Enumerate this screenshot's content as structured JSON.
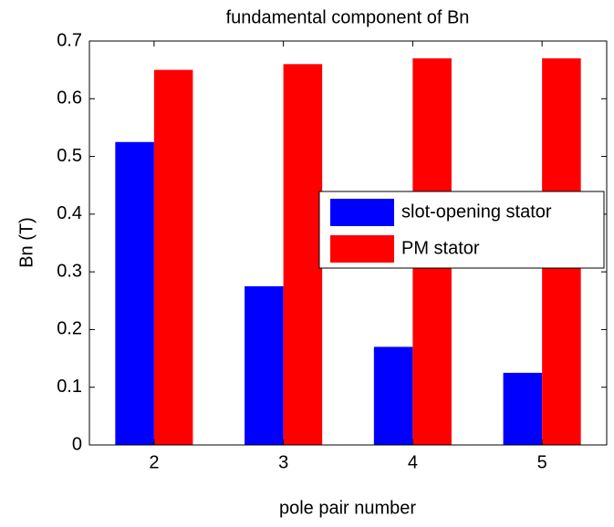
{
  "chart_data": {
    "type": "bar",
    "title": "fundamental component of Bn",
    "x_label": "pole pair number",
    "y_label": "Bn (T)",
    "categories": [
      "2",
      "3",
      "4",
      "5"
    ],
    "series": [
      {
        "name": "slot-opening stator",
        "color": "#0000ff",
        "values": [
          0.525,
          0.275,
          0.17,
          0.125
        ]
      },
      {
        "name": "PM stator",
        "color": "#ff0000",
        "values": [
          0.65,
          0.66,
          0.67,
          0.67
        ]
      }
    ],
    "ylim": [
      0,
      0.7
    ],
    "yticks": [
      0,
      0.1,
      0.2,
      0.3,
      0.4,
      0.5,
      0.6,
      0.7
    ],
    "grid": false,
    "legend": "right"
  }
}
